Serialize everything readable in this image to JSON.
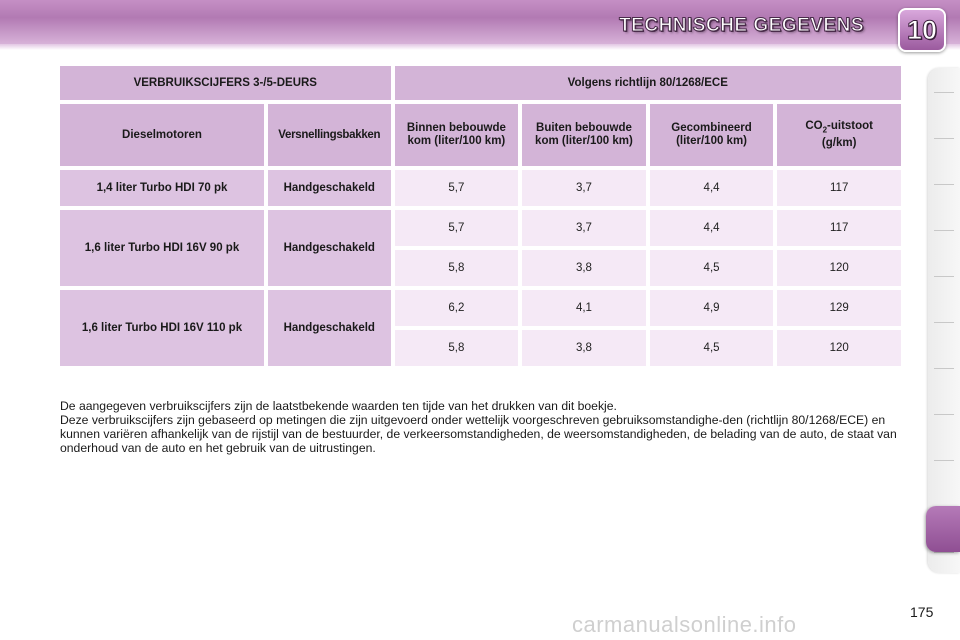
{
  "header": {
    "title": "TECHNISCHE GEGEVENS",
    "chapter": "10"
  },
  "table": {
    "top": {
      "left": "VERBRUIKSCIJFERS 3-/5-DEURS",
      "right": "Volgens richtlijn 80/1268/ECE"
    },
    "headers": {
      "engine": "Dieselmotoren",
      "gearbox": "Versnellingsbakken",
      "urban": "Binnen bebouwde kom (liter/100 km)",
      "extra_urban": "Buiten bebouwde kom (liter/100 km)",
      "combined": "Gecombineerd (liter/100 km)",
      "co2_prefix": "CO",
      "co2_sub": "2",
      "co2_suffix": "-uitstoot",
      "co2_unit": "(g/km)"
    },
    "groups": [
      {
        "engine": "1,4 liter Turbo HDI 70 pk",
        "gearbox": "Handgeschakeld",
        "rows": [
          {
            "urban": "5,7",
            "extra_urban": "3,7",
            "combined": "4,4",
            "co2": "117"
          }
        ]
      },
      {
        "engine": "1,6 liter Turbo HDI 16V 90 pk",
        "gearbox": "Handgeschakeld",
        "rows": [
          {
            "urban": "5,7",
            "extra_urban": "3,7",
            "combined": "4,4",
            "co2": "117"
          },
          {
            "urban": "5,8",
            "extra_urban": "3,8",
            "combined": "4,5",
            "co2": "120"
          }
        ]
      },
      {
        "engine": "1,6 liter Turbo HDI 16V 110 pk",
        "gearbox": "Handgeschakeld",
        "rows": [
          {
            "urban": "6,2",
            "extra_urban": "4,1",
            "combined": "4,9",
            "co2": "129"
          },
          {
            "urban": "5,8",
            "extra_urban": "3,8",
            "combined": "4,5",
            "co2": "120"
          }
        ]
      }
    ]
  },
  "notes": {
    "line1": "De aangegeven verbruikscijfers zijn de laatstbekende waarden ten tijde van het drukken van dit boekje.",
    "line2": "Deze verbruikscijfers zijn gebaseerd op metingen die zijn uitgevoerd onder wettelijk voorgeschreven gebruiksomstandighe-den (richtlijn 80/1268/ECE) en kunnen variëren afhankelijk van de rijstijl van de bestuurder, de verkeersomstandigheden, de weersomstandigheden, de belading van de auto, de staat van onderhoud van de auto en het gebruik van de uitrustingen."
  },
  "page_number": "175",
  "watermark": "carmanualsonline.info",
  "colors": {
    "header_band": "#b27ab3",
    "table_header": "#d3b4d7",
    "table_cell": "#f5e9f6",
    "active_tab": "#a064a4"
  }
}
